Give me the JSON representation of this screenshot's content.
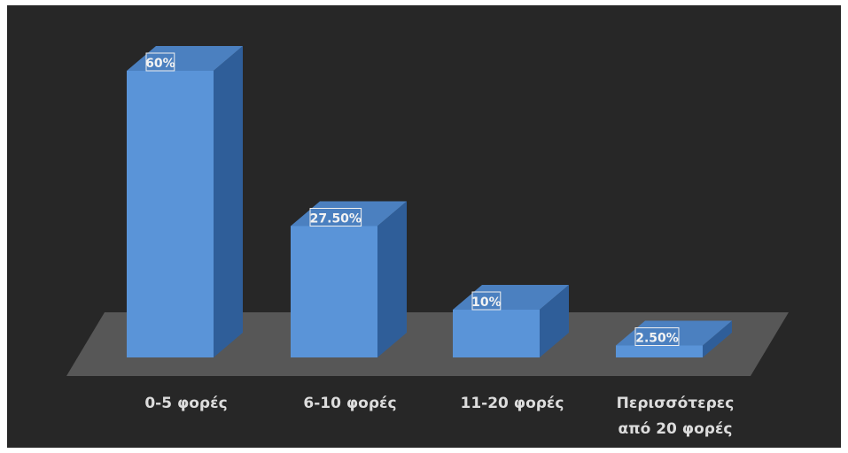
{
  "chart_data": {
    "type": "bar",
    "categories": [
      "0-5 φορές",
      "6-10 φορές",
      "11-20 φορές",
      "Περισσότερες από 20 φορές"
    ],
    "category_lines": [
      [
        "0-5 φορές"
      ],
      [
        "6-10 φορές"
      ],
      [
        "11-20 φορές"
      ],
      [
        "Περισσότερες",
        "από 20 φορές"
      ]
    ],
    "values": [
      60,
      27.5,
      10,
      2.5
    ],
    "data_labels": [
      "60%",
      "27.50%",
      "10%",
      "2.50%"
    ],
    "title": "",
    "xlabel": "",
    "ylabel": "",
    "ylim": [
      0,
      60
    ],
    "grid": false,
    "legend": "none",
    "style": "3d-column"
  },
  "colors": {
    "outer_background": "#ffffff",
    "plot_background": "#272727",
    "floor": "#575757",
    "bar_front": "#5a94d8",
    "bar_side": "#2f5e99",
    "bar_top": "#4b80c0",
    "label_text": "#f3f3f3",
    "data_label_border": "#f0f0f0",
    "category_text": "#dcdcdc"
  }
}
